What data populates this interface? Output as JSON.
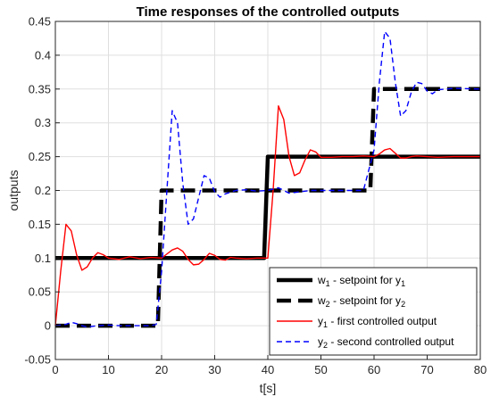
{
  "chart_data": {
    "type": "line",
    "title": "Time responses of the controlled outputs",
    "xlabel": "t[s]",
    "ylabel": "outputs",
    "xlim": [
      0,
      80
    ],
    "ylim": [
      -0.05,
      0.45
    ],
    "xticks": [
      0,
      10,
      20,
      30,
      40,
      50,
      60,
      70,
      80
    ],
    "yticks": [
      -0.05,
      0,
      0.05,
      0.1,
      0.15,
      0.2,
      0.25,
      0.3,
      0.35,
      0.4,
      0.45
    ],
    "xtick_labels": [
      "0",
      "10",
      "20",
      "30",
      "40",
      "50",
      "60",
      "70",
      "80"
    ],
    "ytick_labels": [
      "-0.05",
      "0",
      "0.05",
      "0.1",
      "0.15",
      "0.2",
      "0.25",
      "0.3",
      "0.35",
      "0.4",
      "0.45"
    ],
    "grid": true,
    "legend_position": "bottom-right",
    "series": [
      {
        "name": "w1 - setpoint for y1",
        "legend": {
          "pre": "w",
          "sub1": "1",
          "mid": " - setpoint for y",
          "sub2": "1",
          "post": ""
        },
        "color": "#000000",
        "style": "solid-thick",
        "x": [
          0,
          39.3,
          40,
          80
        ],
        "y": [
          0.1,
          0.1,
          0.25,
          0.25
        ]
      },
      {
        "name": "w2 - setpoint for y2",
        "legend": {
          "pre": "w",
          "sub1": "2",
          "mid": " - setpoint for y",
          "sub2": "2",
          "post": ""
        },
        "color": "#000000",
        "style": "dashed-thick",
        "x": [
          0,
          19.3,
          20,
          59.3,
          60,
          80
        ],
        "y": [
          0,
          0,
          0.2,
          0.2,
          0.35,
          0.35
        ]
      },
      {
        "name": "y1 - first controlled output",
        "legend": {
          "pre": "y",
          "sub1": "1",
          "mid": " - first controlled output",
          "sub2": "",
          "post": ""
        },
        "color": "#ff0000",
        "style": "solid",
        "x": [
          0,
          1,
          2,
          3,
          4,
          5,
          6,
          7,
          8,
          9,
          10,
          12,
          14,
          16,
          18,
          20,
          21,
          22,
          23,
          24,
          25,
          26,
          27,
          28,
          29,
          30,
          31,
          32,
          33,
          34,
          36,
          38,
          40,
          41,
          42,
          43,
          44,
          45,
          46,
          47,
          48,
          49,
          50,
          52,
          54,
          56,
          58,
          60,
          61,
          62,
          63,
          64,
          65,
          66,
          67,
          68,
          70,
          72,
          75,
          80
        ],
        "y": [
          0,
          0.08,
          0.15,
          0.14,
          0.105,
          0.082,
          0.087,
          0.1,
          0.108,
          0.105,
          0.1,
          0.098,
          0.102,
          0.099,
          0.101,
          0.1,
          0.106,
          0.112,
          0.115,
          0.11,
          0.098,
          0.09,
          0.091,
          0.098,
          0.107,
          0.104,
          0.098,
          0.097,
          0.101,
          0.1,
          0.099,
          0.1,
          0.1,
          0.2,
          0.325,
          0.305,
          0.25,
          0.222,
          0.226,
          0.245,
          0.26,
          0.257,
          0.249,
          0.249,
          0.25,
          0.25,
          0.251,
          0.25,
          0.254,
          0.26,
          0.262,
          0.255,
          0.248,
          0.248,
          0.25,
          0.251,
          0.25,
          0.249,
          0.25,
          0.25
        ]
      },
      {
        "name": "y2 - second controlled output",
        "legend": {
          "pre": "y",
          "sub1": "2",
          "mid": " - second controlled output",
          "sub2": "",
          "post": ""
        },
        "color": "#0000ff",
        "style": "dashed",
        "x": [
          0,
          2,
          3,
          4,
          5,
          6,
          8,
          10,
          12,
          14,
          16,
          18,
          19,
          20,
          21,
          22,
          23,
          24,
          25,
          26,
          27,
          28,
          29,
          30,
          31,
          32,
          34,
          36,
          38,
          40,
          41,
          42,
          43,
          44,
          46,
          48,
          50,
          52,
          54,
          56,
          58,
          60,
          61,
          62,
          63,
          64,
          65,
          66,
          67,
          68,
          69,
          70,
          71,
          72,
          75,
          80
        ],
        "y": [
          0,
          0.002,
          0.005,
          0.003,
          0.0,
          -0.002,
          0.0,
          0.001,
          0.0,
          0.0,
          0.0,
          0.0,
          0.002,
          0.08,
          0.2,
          0.318,
          0.3,
          0.21,
          0.15,
          0.158,
          0.19,
          0.222,
          0.218,
          0.198,
          0.19,
          0.195,
          0.2,
          0.201,
          0.199,
          0.2,
          0.202,
          0.204,
          0.2,
          0.196,
          0.198,
          0.2,
          0.2,
          0.2,
          0.2,
          0.2,
          0.2,
          0.26,
          0.36,
          0.435,
          0.425,
          0.36,
          0.31,
          0.318,
          0.345,
          0.36,
          0.358,
          0.347,
          0.343,
          0.349,
          0.351,
          0.35
        ]
      }
    ]
  }
}
